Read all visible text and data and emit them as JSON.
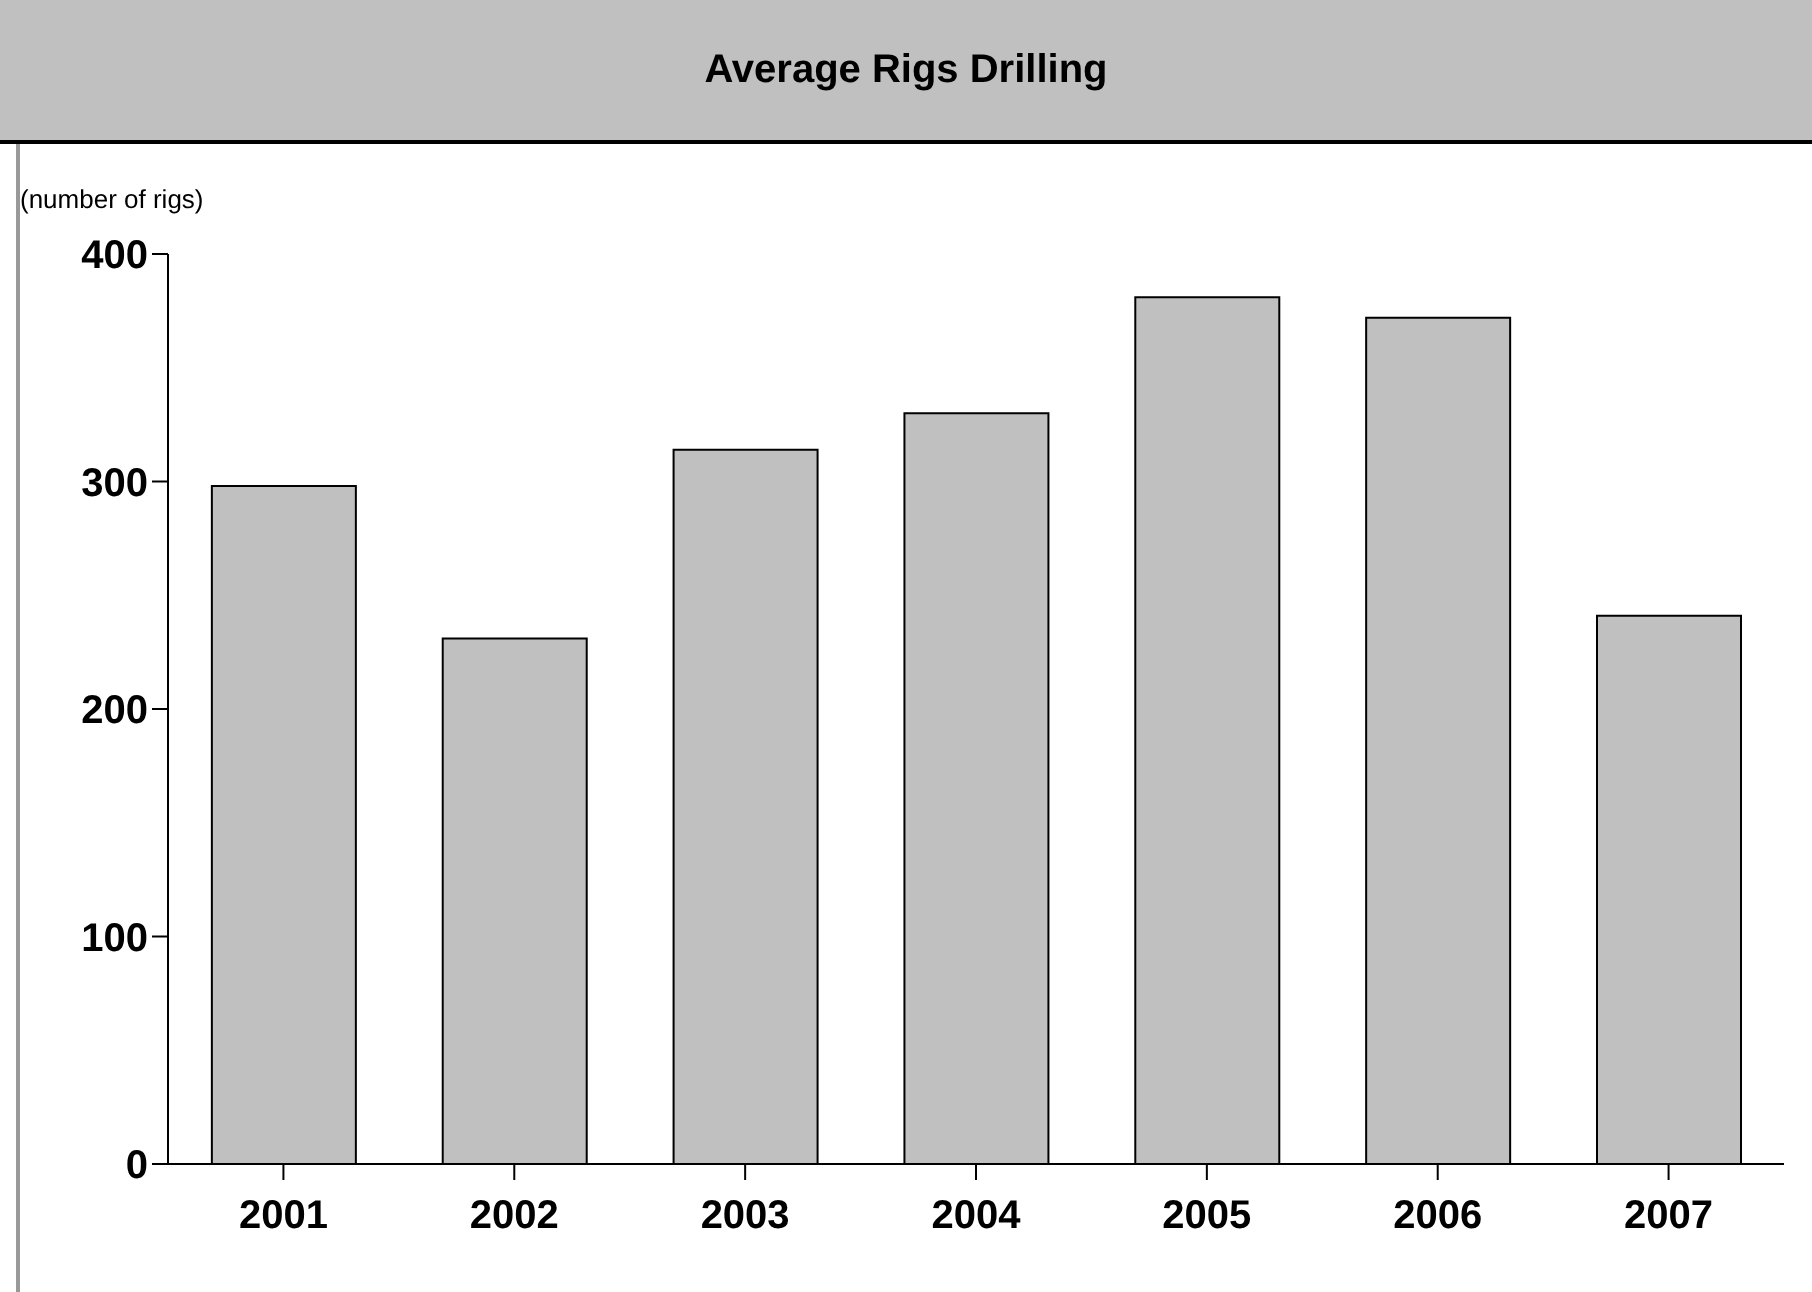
{
  "chart_data": {
    "type": "bar",
    "title": "Average Rigs Drilling",
    "ylabel": "(number of rigs)",
    "categories": [
      "2001",
      "2002",
      "2003",
      "2004",
      "2005",
      "2006",
      "2007"
    ],
    "values": [
      298,
      231,
      314,
      330,
      381,
      372,
      241
    ],
    "color": "#c0c0c0",
    "ylim": [
      0,
      400
    ],
    "yticks": [
      0,
      100,
      200,
      300,
      400
    ],
    "grid": false,
    "legend": false
  }
}
